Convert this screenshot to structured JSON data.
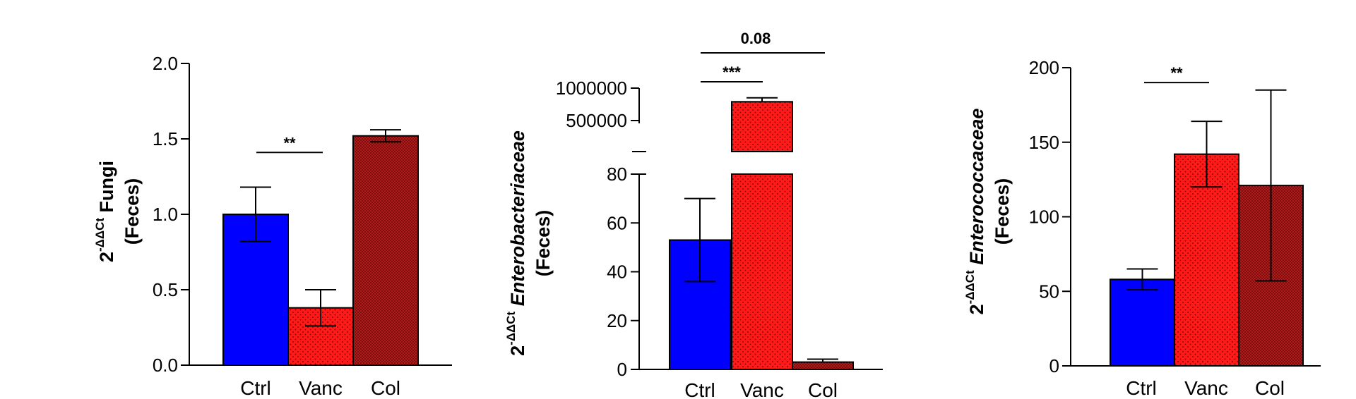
{
  "colors": {
    "ctrl": "#0000ff",
    "vanc": "#ff1a1a",
    "col": "#b01c1c",
    "outline": "#000000"
  },
  "chart_data": [
    {
      "type": "bar",
      "panel": "fungi",
      "categories": [
        "Ctrl",
        "Vanc",
        "Col"
      ],
      "values": [
        1.0,
        0.38,
        1.52
      ],
      "error": [
        0.18,
        0.12,
        0.04
      ],
      "ylim": [
        0,
        2.0
      ],
      "yticks": [
        0.0,
        0.5,
        1.0,
        1.5,
        2.0
      ],
      "ytick_labels": [
        "0.0",
        "0.5",
        "1.0",
        "1.5",
        "2.0"
      ],
      "ylabel_base": "2",
      "ylabel_sup": "-ΔΔCt",
      "ylabel_taxon": "Fungi",
      "ylabel_line2": "(Feces)",
      "significance": [
        {
          "from": "Ctrl",
          "to": "Vanc",
          "label": "**",
          "y": 1.41
        }
      ]
    },
    {
      "type": "bar",
      "panel": "enterobacteriaceae",
      "broken_axis": true,
      "categories": [
        "Ctrl",
        "Vanc",
        "Col"
      ],
      "values": [
        53,
        790000,
        3
      ],
      "error": [
        17,
        60000,
        1.2
      ],
      "lower_ylim": [
        0,
        80
      ],
      "lower_yticks": [
        0,
        20,
        40,
        60,
        80
      ],
      "upper_ylim": [
        0,
        1000000
      ],
      "upper_yticks": [
        500000,
        1000000
      ],
      "upper_ytick_labels": [
        "500000",
        "1000000"
      ],
      "ylabel_base": "2",
      "ylabel_sup": "-ΔΔCt",
      "ylabel_taxon": "Enterobacteriaceae",
      "ylabel_line2": "(Feces)",
      "significance": [
        {
          "from": "Ctrl",
          "to": "Vanc",
          "label": "***"
        },
        {
          "from": "Ctrl",
          "to": "Col",
          "label": "0.08"
        }
      ]
    },
    {
      "type": "bar",
      "panel": "enterococcaceae",
      "categories": [
        "Ctrl",
        "Vanc",
        "Col"
      ],
      "values": [
        58,
        142,
        121
      ],
      "error": [
        7,
        22,
        64
      ],
      "ylim": [
        0,
        200
      ],
      "yticks": [
        0,
        50,
        100,
        150,
        200
      ],
      "ylabel_base": "2",
      "ylabel_sup": "-ΔΔCt",
      "ylabel_taxon": "Enterococcaceae",
      "ylabel_line2": "(Feces)",
      "significance": [
        {
          "from": "Ctrl",
          "to": "Vanc",
          "label": "**",
          "y": 190
        }
      ]
    }
  ]
}
